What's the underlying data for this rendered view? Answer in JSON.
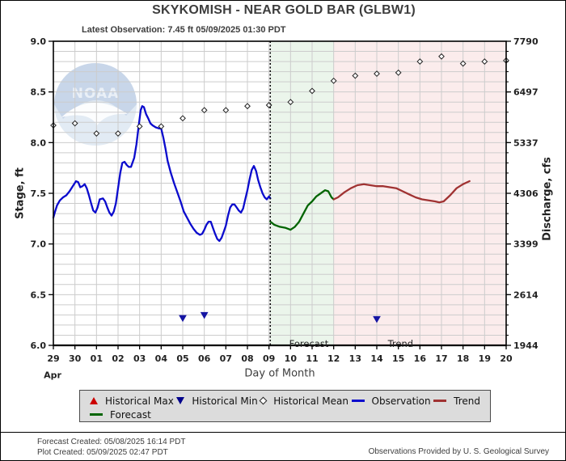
{
  "header": {
    "title": "SKYKOMISH - NEAR GOLD BAR  (GLBW1)",
    "latest_observation": "Latest Observation: 7.45 ft 05/09/2025 01:30 PDT"
  },
  "chart_data": {
    "type": "line",
    "x_axis": {
      "label": "Day of Month",
      "month_label": "Apr",
      "tick_labels": [
        "29",
        "30",
        "01",
        "02",
        "03",
        "04",
        "05",
        "06",
        "07",
        "08",
        "09",
        "10",
        "11",
        "12",
        "13",
        "14",
        "15",
        "16",
        "17",
        "18",
        "19",
        "20"
      ],
      "range": [
        0,
        21
      ]
    },
    "y_left": {
      "label": "Stage, ft",
      "ylim": [
        6.0,
        9.0
      ],
      "tick_values": [
        9.0,
        8.5,
        8.0,
        7.5,
        7.0,
        6.5,
        6.0
      ],
      "tick_labels": [
        "9.0",
        "8.5",
        "8.0",
        "7.5",
        "7.0",
        "6.5",
        "6.0"
      ],
      "minor_step": 0.1
    },
    "y_right": {
      "label": "Discharge, cfs",
      "tick_labels": [
        "7790",
        "6497",
        "5337",
        "4306",
        "3399",
        "2614",
        "1944"
      ]
    },
    "regions": {
      "forecast": {
        "start": 10.06,
        "end": 13.0,
        "label": "Forecast",
        "label_x_day": 11.85
      },
      "trend": {
        "start": 13.0,
        "end": 21.0,
        "label": "Trend",
        "label_x_day": 16.1
      }
    },
    "divider_day": 10.06,
    "series": [
      {
        "name": "Observation",
        "kind": "line",
        "color": "#0b0bcd",
        "points": [
          [
            0.0,
            7.26
          ],
          [
            0.08,
            7.32
          ],
          [
            0.17,
            7.38
          ],
          [
            0.3,
            7.43
          ],
          [
            0.45,
            7.46
          ],
          [
            0.6,
            7.48
          ],
          [
            0.75,
            7.52
          ],
          [
            0.9,
            7.57
          ],
          [
            1.05,
            7.62
          ],
          [
            1.15,
            7.61
          ],
          [
            1.25,
            7.56
          ],
          [
            1.35,
            7.57
          ],
          [
            1.45,
            7.59
          ],
          [
            1.55,
            7.55
          ],
          [
            1.65,
            7.48
          ],
          [
            1.75,
            7.4
          ],
          [
            1.85,
            7.33
          ],
          [
            1.95,
            7.31
          ],
          [
            2.05,
            7.36
          ],
          [
            2.15,
            7.44
          ],
          [
            2.3,
            7.45
          ],
          [
            2.4,
            7.42
          ],
          [
            2.5,
            7.36
          ],
          [
            2.6,
            7.31
          ],
          [
            2.7,
            7.28
          ],
          [
            2.8,
            7.32
          ],
          [
            2.9,
            7.4
          ],
          [
            3.0,
            7.55
          ],
          [
            3.1,
            7.7
          ],
          [
            3.2,
            7.8
          ],
          [
            3.3,
            7.81
          ],
          [
            3.4,
            7.78
          ],
          [
            3.5,
            7.76
          ],
          [
            3.6,
            7.76
          ],
          [
            3.75,
            7.85
          ],
          [
            3.85,
            7.98
          ],
          [
            3.95,
            8.15
          ],
          [
            4.05,
            8.32
          ],
          [
            4.12,
            8.36
          ],
          [
            4.2,
            8.35
          ],
          [
            4.3,
            8.28
          ],
          [
            4.4,
            8.24
          ],
          [
            4.5,
            8.19
          ],
          [
            4.6,
            8.17
          ],
          [
            4.75,
            8.15
          ],
          [
            4.9,
            8.14
          ],
          [
            5.0,
            8.14
          ],
          [
            5.1,
            8.05
          ],
          [
            5.2,
            7.94
          ],
          [
            5.3,
            7.82
          ],
          [
            5.45,
            7.7
          ],
          [
            5.6,
            7.6
          ],
          [
            5.75,
            7.51
          ],
          [
            5.9,
            7.42
          ],
          [
            6.05,
            7.32
          ],
          [
            6.2,
            7.26
          ],
          [
            6.35,
            7.2
          ],
          [
            6.5,
            7.15
          ],
          [
            6.65,
            7.11
          ],
          [
            6.8,
            7.09
          ],
          [
            6.9,
            7.1
          ],
          [
            7.0,
            7.14
          ],
          [
            7.1,
            7.19
          ],
          [
            7.2,
            7.22
          ],
          [
            7.3,
            7.22
          ],
          [
            7.4,
            7.16
          ],
          [
            7.5,
            7.1
          ],
          [
            7.6,
            7.05
          ],
          [
            7.7,
            7.03
          ],
          [
            7.8,
            7.06
          ],
          [
            7.9,
            7.12
          ],
          [
            8.0,
            7.18
          ],
          [
            8.1,
            7.28
          ],
          [
            8.2,
            7.36
          ],
          [
            8.3,
            7.39
          ],
          [
            8.4,
            7.39
          ],
          [
            8.5,
            7.36
          ],
          [
            8.6,
            7.33
          ],
          [
            8.7,
            7.31
          ],
          [
            8.8,
            7.35
          ],
          [
            8.9,
            7.44
          ],
          [
            9.0,
            7.53
          ],
          [
            9.1,
            7.64
          ],
          [
            9.2,
            7.73
          ],
          [
            9.3,
            7.77
          ],
          [
            9.4,
            7.72
          ],
          [
            9.5,
            7.63
          ],
          [
            9.6,
            7.56
          ],
          [
            9.7,
            7.5
          ],
          [
            9.8,
            7.46
          ],
          [
            9.9,
            7.44
          ],
          [
            10.0,
            7.47
          ],
          [
            10.06,
            7.45
          ]
        ]
      },
      {
        "name": "Forecast",
        "kind": "line",
        "color": "#006400",
        "points": [
          [
            10.06,
            7.22
          ],
          [
            10.25,
            7.19
          ],
          [
            10.5,
            7.17
          ],
          [
            10.75,
            7.16
          ],
          [
            11.0,
            7.14
          ],
          [
            11.2,
            7.17
          ],
          [
            11.4,
            7.22
          ],
          [
            11.6,
            7.3
          ],
          [
            11.8,
            7.38
          ],
          [
            12.0,
            7.42
          ],
          [
            12.2,
            7.47
          ],
          [
            12.4,
            7.5
          ],
          [
            12.6,
            7.53
          ],
          [
            12.75,
            7.52
          ],
          [
            12.9,
            7.46
          ],
          [
            13.0,
            7.44
          ]
        ]
      },
      {
        "name": "Trend",
        "kind": "line",
        "color": "#a03232",
        "points": [
          [
            13.0,
            7.44
          ],
          [
            13.2,
            7.46
          ],
          [
            13.5,
            7.51
          ],
          [
            13.8,
            7.55
          ],
          [
            14.1,
            7.58
          ],
          [
            14.4,
            7.59
          ],
          [
            14.7,
            7.58
          ],
          [
            15.0,
            7.57
          ],
          [
            15.3,
            7.57
          ],
          [
            15.6,
            7.56
          ],
          [
            15.9,
            7.55
          ],
          [
            16.2,
            7.52
          ],
          [
            16.5,
            7.49
          ],
          [
            16.8,
            7.46
          ],
          [
            17.1,
            7.44
          ],
          [
            17.4,
            7.43
          ],
          [
            17.7,
            7.42
          ],
          [
            17.9,
            7.41
          ],
          [
            18.1,
            7.42
          ],
          [
            18.4,
            7.48
          ],
          [
            18.7,
            7.55
          ],
          [
            19.0,
            7.59
          ],
          [
            19.3,
            7.62
          ]
        ]
      },
      {
        "name": "Historical Mean",
        "kind": "marker",
        "marker": "diamond",
        "color": "#222222",
        "points": [
          [
            0,
            8.17
          ],
          [
            1,
            8.19
          ],
          [
            2,
            8.09
          ],
          [
            3,
            8.09
          ],
          [
            4,
            8.16
          ],
          [
            5,
            8.16
          ],
          [
            6,
            8.24
          ],
          [
            7,
            8.32
          ],
          [
            8,
            8.32
          ],
          [
            9,
            8.36
          ],
          [
            10,
            8.37
          ],
          [
            11,
            8.4
          ],
          [
            12,
            8.51
          ],
          [
            13,
            8.61
          ],
          [
            14,
            8.66
          ],
          [
            15,
            8.68
          ],
          [
            16,
            8.69
          ],
          [
            17,
            8.8
          ],
          [
            18,
            8.85
          ],
          [
            19,
            8.78
          ],
          [
            20,
            8.8
          ],
          [
            21,
            8.81
          ]
        ]
      },
      {
        "name": "Historical Min",
        "kind": "marker",
        "marker": "triangle-down",
        "color": "#1515a3",
        "points": [
          [
            6,
            6.27
          ],
          [
            7,
            6.3
          ],
          [
            15,
            6.26
          ]
        ]
      }
    ],
    "colors": {
      "band_forecast": "#ebf5eb",
      "band_trend": "#fbecec",
      "grid": "#cccccc",
      "axis": "#000000"
    }
  },
  "legend": {
    "items": [
      {
        "label": "Historical Max",
        "marker": "triangle-up",
        "color": "#cc0000"
      },
      {
        "label": "Historical Min",
        "marker": "triangle-down",
        "color": "#00008b"
      },
      {
        "label": "Historical Mean",
        "marker": "diamond",
        "color": "#222222"
      },
      {
        "label": "Observation",
        "marker": "line",
        "color": "#0b0bcd"
      },
      {
        "label": "Trend",
        "marker": "line",
        "color": "#a03232"
      },
      {
        "label": "Forecast",
        "marker": "line",
        "color": "#006400"
      }
    ]
  },
  "watermark": {
    "name": "noaa-logo",
    "text": "NOAA"
  },
  "footer": {
    "forecast_created": "Forecast Created: 05/08/2025 16:14 PDT",
    "plot_created": "Plot Created: 05/09/2025 02:47 PDT",
    "provider": "Observations Provided by U. S. Geological Survey"
  }
}
